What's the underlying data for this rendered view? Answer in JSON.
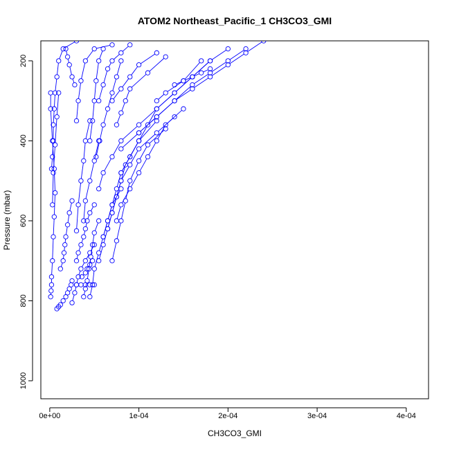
{
  "chart_data": {
    "type": "line",
    "title": "ATOM2 Northeast_Pacific_1 CH3CO3_GMI",
    "xlabel": "CH3CO3_GMI",
    "ylabel": "Pressure (mbar)",
    "xlim": [
      -1e-05,
      0.000425
    ],
    "ylim": [
      1045,
      150
    ],
    "y_reversed": true,
    "grid": false,
    "x_ticks": [
      0,
      0.0001,
      0.0002,
      0.0003,
      0.0004
    ],
    "x_tick_labels": [
      "0e+00",
      "1e-04",
      "2e-04",
      "3e-04",
      "4e-04"
    ],
    "y_ticks": [
      200,
      400,
      600,
      800,
      1000
    ],
    "y_tick_labels": [
      "200",
      "400",
      "600",
      "800",
      "1000"
    ],
    "marker": "open-circle",
    "color": "#0000ff",
    "series": [
      {
        "x": [
          1e-06,
          1.5e-06,
          2e-06,
          2e-06,
          3e-06,
          4e-06,
          5e-06,
          6e-06,
          5e-06,
          3e-06,
          1e-06,
          1e-06
        ],
        "y": [
          790,
          775,
          760,
          740,
          700,
          640,
          590,
          530,
          470,
          400,
          320,
          280
        ]
      },
      {
        "x": [
          2e-06,
          3e-06,
          4e-06,
          4e-06,
          5e-06,
          6e-06,
          8e-06,
          1e-05,
          1.5e-05,
          3e-05
        ],
        "y": [
          470,
          440,
          400,
          360,
          320,
          280,
          240,
          200,
          170,
          150
        ]
      },
      {
        "x": [
          8e-06,
          1e-05,
          1.2e-05,
          1.5e-05,
          1.8e-05,
          2e-05,
          2.2e-05,
          2.4e-05,
          2.5e-05
        ],
        "y": [
          820,
          815,
          810,
          800,
          790,
          780,
          770,
          760,
          750
        ]
      },
      {
        "x": [
          1.2e-05,
          1.5e-05,
          1.6e-05,
          1.7e-05,
          1.8e-05,
          2e-05,
          2.2e-05,
          2.5e-05
        ],
        "y": [
          720,
          700,
          680,
          660,
          640,
          610,
          580,
          550
        ]
      },
      {
        "x": [
          2.5e-05,
          2.8e-05,
          3e-05,
          3.2e-05,
          3.5e-05,
          4e-05,
          4.5e-05,
          5e-05
        ],
        "y": [
          805,
          780,
          760,
          740,
          720,
          700,
          680,
          660
        ]
      },
      {
        "x": [
          3e-05,
          3.5e-05,
          4e-05,
          4.5e-05,
          5e-05
        ],
        "y": [
          760,
          760,
          760,
          760,
          760
        ]
      },
      {
        "x": [
          3e-05,
          3.2e-05,
          3.5e-05,
          3.8e-05,
          4e-05,
          4.2e-05,
          4.5e-05,
          5e-05
        ],
        "y": [
          700,
          680,
          660,
          640,
          620,
          600,
          580,
          560
        ]
      },
      {
        "x": [
          3.6e-05,
          4e-05,
          4.2e-05,
          4.5e-05,
          4.8e-05
        ],
        "y": [
          740,
          730,
          720,
          710,
          700
        ]
      },
      {
        "x": [
          3.8e-05,
          4e-05,
          4.2e-05,
          4.4e-05,
          4.6e-05,
          4.8e-05,
          5e-05,
          5.5e-05
        ],
        "y": [
          790,
          770,
          750,
          720,
          690,
          660,
          630,
          600
        ]
      },
      {
        "x": [
          3e-05,
          3.2e-05,
          3.5e-05,
          3.8e-05,
          4e-05,
          4.5e-05
        ],
        "y": [
          625,
          560,
          500,
          450,
          400,
          350
        ]
      },
      {
        "x": [
          4.5e-05,
          4.8e-05,
          5e-05,
          5.5e-05,
          6e-05,
          6.5e-05,
          7e-05,
          8e-05
        ],
        "y": [
          790,
          760,
          720,
          680,
          640,
          600,
          560,
          520
        ]
      },
      {
        "x": [
          5.5e-05,
          6e-05,
          6.5e-05,
          7e-05,
          7.5e-05,
          8e-05,
          8.5e-05,
          0.0001
        ],
        "y": [
          700,
          660,
          620,
          580,
          540,
          500,
          460,
          400
        ]
      },
      {
        "x": [
          6e-05,
          6.5e-05,
          7e-05,
          7.5e-05,
          8e-05,
          9e-05,
          0.0001,
          0.00012
        ],
        "y": [
          640,
          600,
          560,
          520,
          480,
          440,
          400,
          350
        ]
      },
      {
        "x": [
          6.5e-05,
          7e-05,
          7.5e-05,
          8e-05,
          9e-05,
          0.0001,
          0.00012,
          0.00014
        ],
        "y": [
          620,
          580,
          540,
          500,
          460,
          420,
          380,
          340
        ]
      },
      {
        "x": [
          7e-05,
          7.5e-05,
          8e-05,
          8.5e-05,
          9e-05,
          0.0001,
          0.00011,
          0.00013
        ],
        "y": [
          700,
          650,
          600,
          550,
          500,
          450,
          410,
          370
        ]
      },
      {
        "x": [
          7.5e-05,
          8e-05,
          9e-05,
          0.0001,
          0.00011,
          0.00012,
          0.00013,
          0.00015
        ],
        "y": [
          600,
          560,
          520,
          480,
          440,
          400,
          360,
          320
        ]
      },
      {
        "x": [
          5.5e-05,
          6e-05,
          7e-05,
          8e-05,
          0.0001,
          0.00012,
          0.00014,
          0.00016,
          0.00018
        ],
        "y": [
          520,
          480,
          440,
          400,
          360,
          320,
          280,
          240,
          200
        ]
      },
      {
        "x": [
          8e-05,
          9e-05,
          0.0001,
          0.00011,
          0.00012,
          0.00014,
          0.00016,
          0.00018,
          0.0002
        ],
        "y": [
          480,
          440,
          400,
          360,
          320,
          280,
          240,
          200,
          170
        ]
      },
      {
        "x": [
          8e-05,
          0.0001,
          0.00012,
          0.00014,
          0.00016,
          0.00018,
          0.0002,
          0.00022
        ],
        "y": [
          420,
          380,
          340,
          300,
          260,
          230,
          200,
          170
        ]
      },
      {
        "x": [
          0.0001,
          0.00012,
          0.00014,
          0.00016,
          0.00018,
          0.0002,
          0.00022,
          0.00024
        ],
        "y": [
          380,
          340,
          300,
          270,
          240,
          210,
          180,
          150
        ]
      },
      {
        "x": [
          5.2e-05,
          5.6e-05,
          6e-05,
          6.5e-05,
          7e-05,
          7.5e-05,
          8e-05
        ],
        "y": [
          440,
          400,
          360,
          320,
          280,
          240,
          200
        ]
      },
      {
        "x": [
          4.5e-05,
          4.8e-05,
          5e-05,
          5.2e-05,
          5.5e-05,
          6e-05
        ],
        "y": [
          400,
          350,
          300,
          250,
          200,
          170
        ]
      },
      {
        "x": [
          5.5e-05,
          6e-05,
          6.5e-05,
          7e-05,
          8e-05,
          9e-05
        ],
        "y": [
          300,
          260,
          220,
          200,
          180,
          160
        ]
      },
      {
        "x": [
          3e-05,
          3.2e-05,
          3.5e-05,
          4e-05,
          5e-05,
          7e-05
        ],
        "y": [
          350,
          300,
          250,
          200,
          170,
          160
        ]
      },
      {
        "x": [
          7.5e-05,
          8e-05,
          8.5e-05,
          9e-05,
          0.00011,
          0.00013
        ],
        "y": [
          360,
          330,
          300,
          270,
          230,
          190
        ]
      },
      {
        "x": [
          3.8e-05,
          4e-05,
          4.5e-05,
          5e-05,
          5.5e-05
        ],
        "y": [
          600,
          550,
          500,
          450,
          400
        ]
      },
      {
        "x": [
          7e-05,
          8e-05,
          9e-05,
          0.0001,
          0.00012
        ],
        "y": [
          300,
          270,
          240,
          210,
          180
        ]
      },
      {
        "x": [
          0.00012,
          0.00013,
          0.00015,
          0.00017
        ],
        "y": [
          300,
          280,
          250,
          200
        ]
      },
      {
        "x": [
          0.00014,
          0.00015,
          0.00016,
          0.00017,
          0.00018
        ],
        "y": [
          260,
          250,
          240,
          230,
          220
        ]
      },
      {
        "x": [
          3e-06,
          4e-06,
          6e-06,
          8e-06,
          1e-05
        ],
        "y": [
          560,
          480,
          410,
          340,
          280
        ]
      },
      {
        "x": [
          1.8e-05,
          2e-05,
          2.2e-05,
          2.5e-05,
          2.8e-05
        ],
        "y": [
          170,
          190,
          210,
          240,
          260
        ]
      }
    ]
  }
}
